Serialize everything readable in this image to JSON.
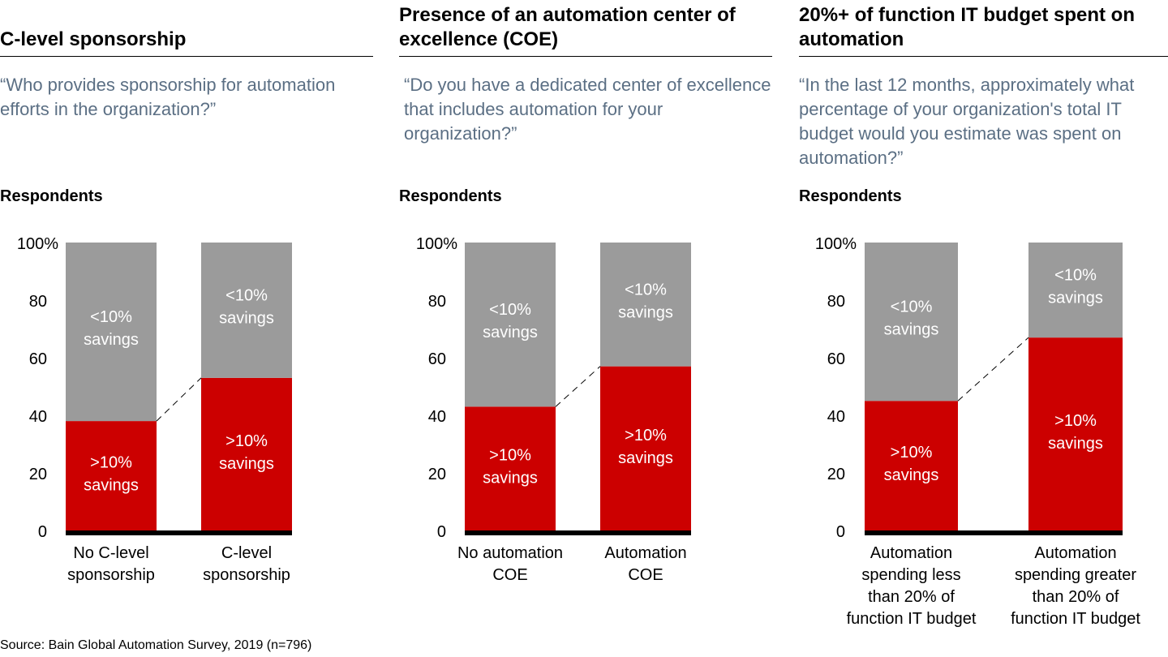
{
  "chart_data": [
    {
      "type": "bar",
      "stacked": true,
      "title": "C-level sponsorship",
      "subtitle": "“Who provides sponsorship for automation efforts in the organization?”",
      "ylabel": "Respondents",
      "ylim": [
        0,
        100
      ],
      "yticks": [
        "0",
        "20",
        "40",
        "60",
        "80",
        "100%"
      ],
      "categories": [
        "No C-level sponsorship",
        "C-level sponsorship"
      ],
      "category_lines": [
        [
          "No C-level",
          "sponsorship"
        ],
        [
          "C-level",
          "sponsorship"
        ]
      ],
      "series": [
        {
          "name": ">10% savings",
          "values": [
            38,
            53
          ],
          "color": "#cc0000"
        },
        {
          "name": "<10% savings",
          "values": [
            62,
            47
          ],
          "color": "#9b9b9b"
        }
      ]
    },
    {
      "type": "bar",
      "stacked": true,
      "title": "Presence of an automation center of excellence (COE)",
      "subtitle": "“Do you have a dedicated center of excellence that includes automation for your organization?”",
      "ylabel": "Respondents",
      "ylim": [
        0,
        100
      ],
      "yticks": [
        "0",
        "20",
        "40",
        "60",
        "80",
        "100%"
      ],
      "categories": [
        "No automation COE",
        "Automation COE"
      ],
      "category_lines": [
        [
          "No automation",
          "COE"
        ],
        [
          "Automation",
          "COE"
        ]
      ],
      "series": [
        {
          "name": ">10% savings",
          "values": [
            43,
            57
          ],
          "color": "#cc0000"
        },
        {
          "name": "<10% savings",
          "values": [
            57,
            43
          ],
          "color": "#9b9b9b"
        }
      ]
    },
    {
      "type": "bar",
      "stacked": true,
      "title": "20%+ of function IT budget spent on automation",
      "subtitle": "“In the last 12 months, approximately what percentage of your organization's total IT budget would you estimate was spent on automation?”",
      "ylabel": "Respondents",
      "ylim": [
        0,
        100
      ],
      "yticks": [
        "0",
        "20",
        "40",
        "60",
        "80",
        "100%"
      ],
      "categories": [
        "Automation spending less than 20% of function IT budget",
        "Automation spending greater than 20% of function IT budget"
      ],
      "category_lines": [
        [
          "Automation",
          "spending less",
          "than 20% of",
          "function IT budget"
        ],
        [
          "Automation",
          "spending greater",
          "than 20% of",
          "function IT budget"
        ]
      ],
      "series": [
        {
          "name": ">10% savings",
          "values": [
            45,
            67
          ],
          "color": "#cc0000"
        },
        {
          "name": "<10% savings",
          "values": [
            55,
            33
          ],
          "color": "#9b9b9b"
        }
      ]
    }
  ],
  "segment_label_lines": {
    ">10% savings": [
      ">10%",
      "savings"
    ],
    "<10% savings": [
      "<10%",
      "savings"
    ]
  },
  "source": "Source: Bain Global Automation Survey, 2019 (n=796)"
}
